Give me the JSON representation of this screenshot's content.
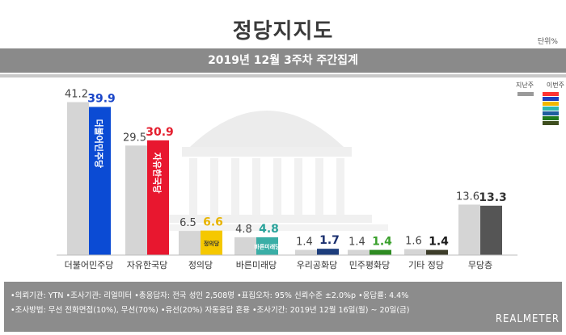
{
  "header": {
    "title": "정당지지도",
    "unit": "단위%",
    "subtitle": "2019년 12월 3주차 주간집계"
  },
  "legend": {
    "prev_label": "지난주",
    "cur_label": "이번주",
    "prev_color": "#9a9a9a",
    "cur_colors": [
      "#ff3333",
      "#1f3fbf",
      "#f2b800",
      "#2eb8b0",
      "#1e5e9e",
      "#1f7a1f",
      "#3f4f20"
    ]
  },
  "chart_data": {
    "type": "bar",
    "categories": [
      "더불어민주당",
      "자유한국당",
      "정의당",
      "바른미래당",
      "우리공화당",
      "민주평화당",
      "기타 정당",
      "무당층"
    ],
    "series": [
      {
        "name": "지난주",
        "values": [
          41.2,
          29.5,
          6.5,
          4.8,
          1.4,
          1.4,
          1.6,
          13.6
        ],
        "color": "#d5d5d5"
      },
      {
        "name": "이번주",
        "values": [
          39.9,
          30.9,
          6.6,
          4.8,
          1.7,
          1.4,
          1.4,
          13.3
        ],
        "colors": [
          "#0b4bd4",
          "#e8172f",
          "#f5c800",
          "#3aaea6",
          "#1d3d7c",
          "#2e8b22",
          "#3d3d2a",
          "#555555"
        ],
        "label_colors": [
          "#1a46c8",
          "#e41e2e",
          "#e8b400",
          "#2aa39b",
          "#1a2f6e",
          "#3aa02c",
          "#1a1a1a",
          "#333333"
        ]
      }
    ],
    "party_logos": [
      "더불어민주당",
      "자유한국당",
      "정의당",
      "바른미래당",
      "",
      "",
      "",
      ""
    ]
  },
  "footer": {
    "line1": "•의뢰기관: YTN  •조사기관: 리얼미터  •총응답자: 전국 성인 2,508명  •표집오차: 95% 신뢰수준 ±2.0%p  •응답률: 4.4%",
    "line2": "•조사방법: 무선 전화면접(10%), 무선(70%) •유선(20%) 자동응답 혼용  •조사기간: 2019년 12월 16일(월) ~ 20일(금)",
    "brand": "REALMETER"
  }
}
